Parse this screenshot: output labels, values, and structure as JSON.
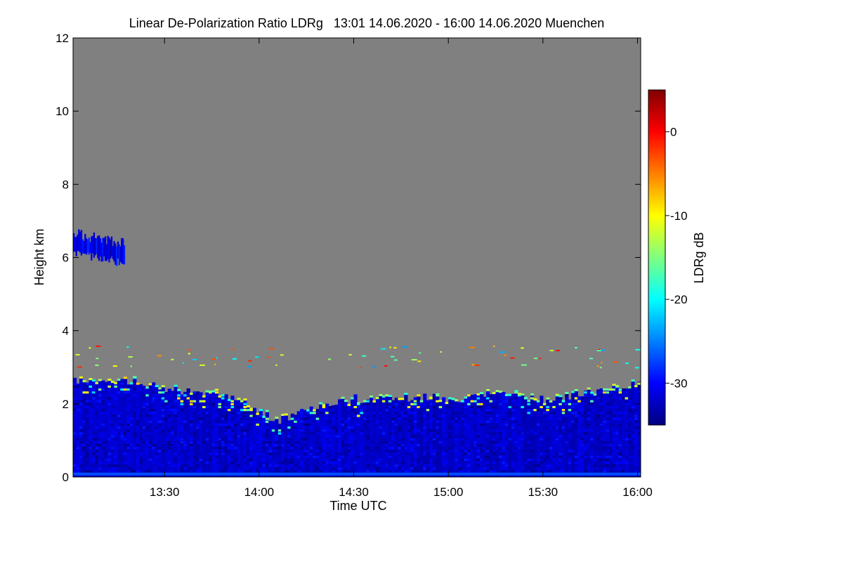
{
  "chart_data": {
    "type": "heatmap",
    "title": "Linear De-Polarization Ratio LDRg   13:01 14.06.2020 - 16:00 14.06.2020 Muenchen",
    "xlabel": "Time UTC",
    "ylabel": "Height km",
    "colorbar_label": "LDRg dB",
    "x_range_minutes_utc": [
      781,
      961
    ],
    "xlim_labels": [
      "13:01",
      "16:00"
    ],
    "x_ticks": [
      {
        "minutes": 810,
        "label": "13:30"
      },
      {
        "minutes": 840,
        "label": "14:00"
      },
      {
        "minutes": 870,
        "label": "14:30"
      },
      {
        "minutes": 900,
        "label": "15:00"
      },
      {
        "minutes": 930,
        "label": "15:30"
      },
      {
        "minutes": 960,
        "label": "16:00"
      }
    ],
    "ylim": [
      0,
      12
    ],
    "y_ticks": [
      {
        "value": 0,
        "label": "0"
      },
      {
        "value": 2,
        "label": "2"
      },
      {
        "value": 4,
        "label": "4"
      },
      {
        "value": 6,
        "label": "6"
      },
      {
        "value": 8,
        "label": "8"
      },
      {
        "value": 10,
        "label": "10"
      },
      {
        "value": 12,
        "label": "12"
      }
    ],
    "colorbar_range_db": [
      -35,
      5
    ],
    "colorbar_ticks": [
      {
        "value": 0,
        "label": "0"
      },
      {
        "value": -10,
        "label": "-10"
      },
      {
        "value": -20,
        "label": "-20"
      },
      {
        "value": -30,
        "label": "-30"
      }
    ],
    "colormap": "jet",
    "no_signal_color": "#808080",
    "features": [
      {
        "name": "boundary layer",
        "time_start": 781,
        "time_end": 961,
        "height_top_km_by_time": [
          [
            781,
            2.6
          ],
          [
            800,
            2.6
          ],
          [
            810,
            2.4
          ],
          [
            830,
            2.2
          ],
          [
            845,
            1.55
          ],
          [
            855,
            1.8
          ],
          [
            870,
            2.1
          ],
          [
            890,
            2.2
          ],
          [
            900,
            2.1
          ],
          [
            915,
            2.3
          ],
          [
            930,
            2.1
          ],
          [
            945,
            2.3
          ],
          [
            955,
            2.5
          ],
          [
            961,
            2.5
          ]
        ],
        "typical_ldr_db": -32
      },
      {
        "name": "boundary layer top (aerosol layer)",
        "height_km": 2.3,
        "typical_ldr_db": -15
      },
      {
        "name": "cirrus / ice cloud",
        "time_start": 781,
        "time_end": 797,
        "height_bottom_km": 5.9,
        "height_top_km": 6.7,
        "typical_ldr_db": -31
      },
      {
        "name": "scattered echoes",
        "height_km": 3.3,
        "typical_ldr_db": -12
      }
    ]
  }
}
